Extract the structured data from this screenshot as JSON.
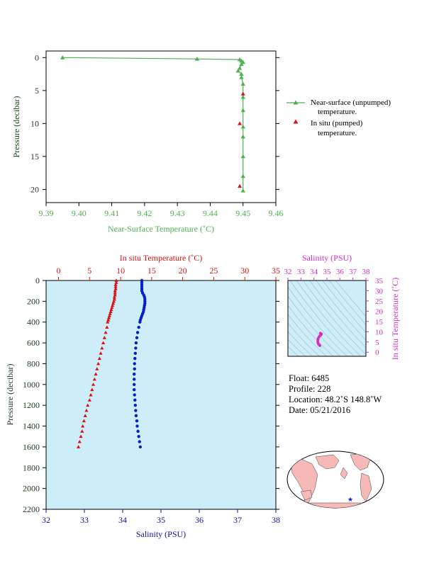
{
  "charts": {
    "top": {
      "xlabel": "Near-Surface Temperature (˚C)",
      "ylabel": "Pressure (decibar)",
      "xticks": [
        "9.39",
        "9.40",
        "9.41",
        "9.42",
        "9.43",
        "9.44",
        "9.45",
        "9.46"
      ],
      "yticks": [
        "0",
        "5",
        "10",
        "15",
        "20"
      ],
      "legend": {
        "unpumped_line1": "Near-surface (unpumped)",
        "unpumped_line2": "temperature.",
        "pumped_line1": "In situ (pumped)",
        "pumped_line2": "temperature."
      }
    },
    "bottom": {
      "top_xlabel": "In situ Temperature (˚C)",
      "bottom_xlabel": "Salinity (PSU)",
      "ylabel": "Pressure (decibar)",
      "temp_ticks": [
        "0",
        "5",
        "10",
        "15",
        "20",
        "25",
        "30",
        "35"
      ],
      "sal_ticks": [
        "32",
        "33",
        "34",
        "35",
        "36",
        "37",
        "38"
      ],
      "p_ticks": [
        "0",
        "200",
        "400",
        "600",
        "800",
        "1000",
        "1200",
        "1400",
        "1600",
        "1800",
        "2000",
        "2200"
      ]
    },
    "ts": {
      "xlabel": "Salinity (PSU)",
      "ylabel": "In situ Temperature (˚C)",
      "xticks": [
        "32",
        "33",
        "34",
        "35",
        "36",
        "37",
        "38"
      ],
      "yticks": [
        "0",
        "5",
        "10",
        "15",
        "20",
        "25",
        "30",
        "35"
      ]
    }
  },
  "info": {
    "float": "Float:  6485",
    "profile": "Profile:  228",
    "location": "Location:  48.2˚S  148.8˚W",
    "date": "Date:  05/21/2016"
  },
  "colors": {
    "green": "#4fb050",
    "red": "#dd1111",
    "blue": "#0a1ec8",
    "magenta": "#d42fc4",
    "plot_bg": "#cdeef8"
  },
  "chart_data": [
    {
      "type": "line",
      "series": [
        {
          "name": "Near-surface (unpumped) temperature.",
          "points": [
            [
              9.395,
              0.0
            ],
            [
              9.436,
              0.2
            ],
            [
              9.449,
              0.3
            ],
            [
              9.4495,
              0.5
            ],
            [
              9.45,
              0.7
            ],
            [
              9.4495,
              1.0
            ],
            [
              9.449,
              1.6
            ],
            [
              9.4485,
              2.0
            ],
            [
              9.4495,
              2.5
            ],
            [
              9.4495,
              3.0
            ],
            [
              9.45,
              4.0
            ],
            [
              9.45,
              6.0
            ],
            [
              9.45,
              8.0
            ],
            [
              9.45,
              10.5
            ],
            [
              9.45,
              12.0
            ],
            [
              9.45,
              15.0
            ],
            [
              9.45,
              18.0
            ],
            [
              9.45,
              20.2
            ]
          ]
        },
        {
          "name": "In situ (pumped) temperature.",
          "points": [
            [
              9.45,
              5.5
            ],
            [
              9.449,
              10.0
            ],
            [
              9.449,
              19.5
            ]
          ]
        }
      ],
      "xlim": [
        9.39,
        9.46
      ],
      "ylim": [
        22,
        -1
      ]
    },
    {
      "type": "scatter",
      "series": [
        {
          "name": "In situ Temperature (˚C)",
          "points": [
            [
              9.3,
              0
            ],
            [
              9.3,
              20
            ],
            [
              9.2,
              40
            ],
            [
              9.2,
              60
            ],
            [
              9.2,
              80
            ],
            [
              9.1,
              100
            ],
            [
              9.1,
              120
            ],
            [
              9.1,
              140
            ],
            [
              9.0,
              160
            ],
            [
              9.0,
              180
            ],
            [
              8.9,
              200
            ],
            [
              8.8,
              220
            ],
            [
              8.7,
              240
            ],
            [
              8.6,
              260
            ],
            [
              8.5,
              280
            ],
            [
              8.4,
              300
            ],
            [
              8.3,
              320
            ],
            [
              8.2,
              340
            ],
            [
              8.1,
              360
            ],
            [
              8.0,
              380
            ],
            [
              7.9,
              400
            ],
            [
              7.8,
              450
            ],
            [
              7.6,
              500
            ],
            [
              7.4,
              550
            ],
            [
              7.2,
              600
            ],
            [
              7.0,
              650
            ],
            [
              6.8,
              700
            ],
            [
              6.6,
              750
            ],
            [
              6.4,
              800
            ],
            [
              6.2,
              850
            ],
            [
              6.0,
              900
            ],
            [
              5.8,
              950
            ],
            [
              5.6,
              1000
            ],
            [
              5.4,
              1050
            ],
            [
              5.2,
              1100
            ],
            [
              5.0,
              1150
            ],
            [
              4.7,
              1200
            ],
            [
              4.5,
              1250
            ],
            [
              4.3,
              1300
            ],
            [
              4.1,
              1350
            ],
            [
              3.9,
              1400
            ],
            [
              3.8,
              1450
            ],
            [
              3.6,
              1500
            ],
            [
              3.4,
              1550
            ],
            [
              3.2,
              1600
            ]
          ]
        },
        {
          "name": "Salinity (PSU)",
          "points": [
            [
              34.5,
              0
            ],
            [
              34.5,
              20
            ],
            [
              34.5,
              40
            ],
            [
              34.5,
              60
            ],
            [
              34.5,
              80
            ],
            [
              34.5,
              100
            ],
            [
              34.52,
              120
            ],
            [
              34.55,
              140
            ],
            [
              34.57,
              160
            ],
            [
              34.58,
              180
            ],
            [
              34.58,
              200
            ],
            [
              34.58,
              220
            ],
            [
              34.57,
              240
            ],
            [
              34.56,
              260
            ],
            [
              34.55,
              280
            ],
            [
              34.54,
              300
            ],
            [
              34.52,
              320
            ],
            [
              34.5,
              340
            ],
            [
              34.48,
              360
            ],
            [
              34.46,
              380
            ],
            [
              34.45,
              400
            ],
            [
              34.42,
              450
            ],
            [
              34.39,
              500
            ],
            [
              34.37,
              550
            ],
            [
              34.35,
              600
            ],
            [
              34.34,
              650
            ],
            [
              34.33,
              700
            ],
            [
              34.32,
              750
            ],
            [
              34.31,
              800
            ],
            [
              34.31,
              850
            ],
            [
              34.3,
              900
            ],
            [
              34.3,
              950
            ],
            [
              34.3,
              1000
            ],
            [
              34.3,
              1050
            ],
            [
              34.31,
              1100
            ],
            [
              34.32,
              1150
            ],
            [
              34.33,
              1200
            ],
            [
              34.34,
              1250
            ],
            [
              34.35,
              1300
            ],
            [
              34.37,
              1350
            ],
            [
              34.38,
              1400
            ],
            [
              34.4,
              1450
            ],
            [
              34.42,
              1500
            ],
            [
              34.44,
              1550
            ],
            [
              34.46,
              1600
            ]
          ]
        }
      ],
      "temp_lim": [
        -2,
        35
      ],
      "sal_lim": [
        32,
        38
      ],
      "ylim": [
        2200,
        0
      ]
    },
    {
      "type": "scatter",
      "series": [
        {
          "name": "T-S",
          "points": [
            [
              34.5,
              9.3
            ],
            [
              34.52,
              9.0
            ],
            [
              34.58,
              8.9
            ],
            [
              34.56,
              8.6
            ],
            [
              34.5,
              8.2
            ],
            [
              34.45,
              7.9
            ],
            [
              34.4,
              7.5
            ],
            [
              34.35,
              7.0
            ],
            [
              34.32,
              6.5
            ],
            [
              34.31,
              6.0
            ],
            [
              34.3,
              5.5
            ],
            [
              34.3,
              5.0
            ],
            [
              34.32,
              4.5
            ],
            [
              34.34,
              4.1
            ],
            [
              34.38,
              3.8
            ],
            [
              34.42,
              3.5
            ],
            [
              34.46,
              3.2
            ]
          ]
        }
      ],
      "xlim": [
        32,
        38
      ],
      "ylim": [
        -2,
        35
      ]
    }
  ]
}
